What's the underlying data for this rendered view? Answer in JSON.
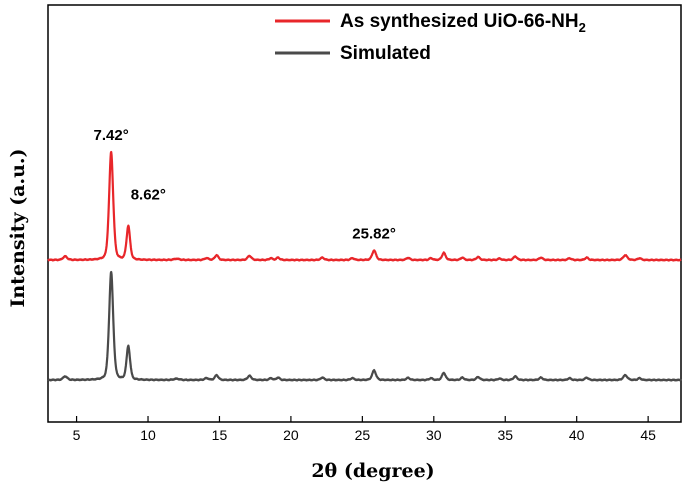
{
  "chart_data": {
    "type": "line",
    "xlabel": "2θ (degree)",
    "ylabel": "Intensity (a.u.)",
    "xlim": [
      3,
      47.3
    ],
    "xticks": [
      5,
      10,
      15,
      20,
      25,
      30,
      35,
      40,
      45
    ],
    "tick_labels": [
      "5",
      "10",
      "15",
      "20",
      "25",
      "30",
      "35",
      "40",
      "45"
    ],
    "y_ticks_shown": false,
    "grid": false,
    "legend_position": "top-right",
    "series": [
      {
        "name": "As synthesized UiO-66-NH",
        "name_subscript": "2",
        "color": "#e8262a",
        "offset": 1.0,
        "baseline": 0.0,
        "peaks": [
          [
            4.2,
            0.03,
            0.15
          ],
          [
            7.42,
            0.9,
            0.15
          ],
          [
            8.62,
            0.28,
            0.13
          ],
          [
            12.0,
            0.01,
            0.2
          ],
          [
            14.1,
            0.015,
            0.15
          ],
          [
            14.8,
            0.04,
            0.13
          ],
          [
            17.1,
            0.035,
            0.14
          ],
          [
            18.6,
            0.015,
            0.12
          ],
          [
            19.1,
            0.02,
            0.12
          ],
          [
            22.2,
            0.02,
            0.13
          ],
          [
            24.3,
            0.015,
            0.13
          ],
          [
            25.82,
            0.08,
            0.14
          ],
          [
            28.2,
            0.018,
            0.13
          ],
          [
            29.8,
            0.015,
            0.12
          ],
          [
            30.7,
            0.06,
            0.13
          ],
          [
            32.0,
            0.02,
            0.12
          ],
          [
            33.1,
            0.025,
            0.13
          ],
          [
            34.6,
            0.012,
            0.12
          ],
          [
            35.7,
            0.03,
            0.13
          ],
          [
            37.5,
            0.02,
            0.13
          ],
          [
            39.5,
            0.015,
            0.12
          ],
          [
            40.7,
            0.02,
            0.12
          ],
          [
            43.4,
            0.04,
            0.15
          ],
          [
            44.4,
            0.015,
            0.12
          ]
        ]
      },
      {
        "name": "Simulated",
        "color": "#4a4a4a",
        "offset": 0.0,
        "baseline": 0.0,
        "peaks": [
          [
            4.2,
            0.03,
            0.15
          ],
          [
            7.42,
            0.9,
            0.15
          ],
          [
            8.62,
            0.28,
            0.13
          ],
          [
            12.0,
            0.01,
            0.2
          ],
          [
            14.1,
            0.015,
            0.15
          ],
          [
            14.8,
            0.04,
            0.13
          ],
          [
            17.1,
            0.035,
            0.14
          ],
          [
            18.6,
            0.015,
            0.12
          ],
          [
            19.1,
            0.02,
            0.12
          ],
          [
            22.2,
            0.02,
            0.13
          ],
          [
            24.3,
            0.015,
            0.13
          ],
          [
            25.82,
            0.08,
            0.14
          ],
          [
            28.2,
            0.018,
            0.13
          ],
          [
            29.8,
            0.015,
            0.12
          ],
          [
            30.7,
            0.06,
            0.13
          ],
          [
            32.0,
            0.02,
            0.12
          ],
          [
            33.1,
            0.025,
            0.13
          ],
          [
            34.6,
            0.012,
            0.12
          ],
          [
            35.7,
            0.03,
            0.13
          ],
          [
            37.5,
            0.02,
            0.13
          ],
          [
            39.5,
            0.015,
            0.12
          ],
          [
            40.7,
            0.02,
            0.12
          ],
          [
            43.4,
            0.04,
            0.15
          ],
          [
            44.4,
            0.015,
            0.12
          ]
        ]
      }
    ],
    "annotations": [
      {
        "text": "7.42°",
        "x": 7.42,
        "series": 0
      },
      {
        "text": "8.62°",
        "x": 8.62,
        "series": 0
      },
      {
        "text": "25.82°",
        "x": 25.82,
        "series": 0
      }
    ]
  }
}
